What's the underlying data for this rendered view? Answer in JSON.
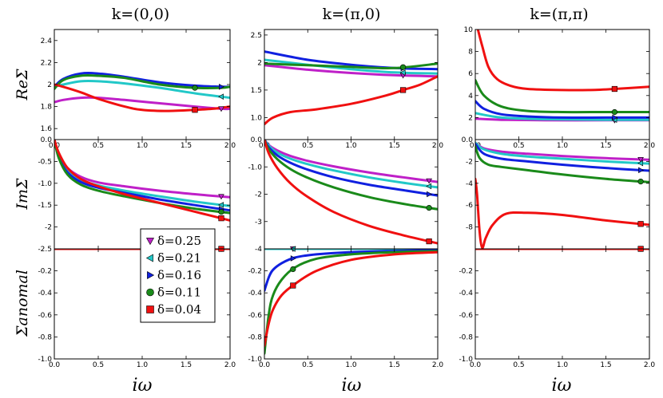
{
  "figure": {
    "col_titles": [
      "k=(0,0)",
      "k=(π,0)",
      "k=(π,π)"
    ],
    "row_labels": [
      "ReΣ",
      "ImΣ",
      "Σanomal"
    ],
    "xlabel": "iω",
    "colors": {
      "0.25": "#bf20c8",
      "0.21": "#22c8c8",
      "0.16": "#1020e0",
      "0.11": "#1a8a1a",
      "0.04": "#f01010"
    },
    "legend": [
      {
        "key": "0.25",
        "label": "δ=0.25",
        "marker": "triangle-down"
      },
      {
        "key": "0.21",
        "label": "δ=0.21",
        "marker": "triangle-left"
      },
      {
        "key": "0.16",
        "label": "δ=0.16",
        "marker": "triangle-right"
      },
      {
        "key": "0.11",
        "label": "δ=0.11",
        "marker": "circle"
      },
      {
        "key": "0.04",
        "label": "δ=0.04",
        "marker": "square"
      }
    ]
  },
  "chart_data": [
    {
      "type": "line",
      "title": "k=(0,0)",
      "ylabel": "ReΣ",
      "xlim": [
        0,
        2
      ],
      "ylim": [
        1.5,
        2.5
      ],
      "xticks": [
        0.0,
        0.5,
        1.0,
        1.5,
        2.0
      ],
      "yticks": [
        1.6,
        1.8,
        2.0,
        2.2,
        2.4
      ],
      "series": [
        {
          "key": "0.25",
          "x": [
            0,
            0.1,
            0.3,
            0.5,
            0.8,
            1.2,
            1.6,
            1.9,
            2.0
          ],
          "y": [
            1.84,
            1.86,
            1.88,
            1.88,
            1.86,
            1.83,
            1.8,
            1.78,
            1.78
          ],
          "marker_x": 1.9
        },
        {
          "key": "0.21",
          "x": [
            0,
            0.1,
            0.3,
            0.5,
            0.8,
            1.2,
            1.6,
            1.9,
            2.0
          ],
          "y": [
            1.98,
            2.0,
            2.03,
            2.03,
            2.01,
            1.97,
            1.92,
            1.89,
            1.88
          ],
          "marker_x": 1.9
        },
        {
          "key": "0.16",
          "x": [
            0,
            0.1,
            0.3,
            0.5,
            0.8,
            1.2,
            1.6,
            1.9,
            2.0
          ],
          "y": [
            1.98,
            2.05,
            2.1,
            2.1,
            2.07,
            2.02,
            1.99,
            1.98,
            1.98
          ],
          "marker_x": 1.9
        },
        {
          "key": "0.11",
          "x": [
            0,
            0.1,
            0.3,
            0.5,
            0.8,
            1.2,
            1.6,
            1.9,
            2.0
          ],
          "y": [
            1.96,
            2.04,
            2.08,
            2.08,
            2.06,
            2.0,
            1.97,
            1.97,
            1.98
          ],
          "marker_x": 1.6
        },
        {
          "key": "0.04",
          "x": [
            0,
            0.1,
            0.3,
            0.5,
            0.8,
            1.0,
            1.3,
            1.6,
            1.8,
            2.0
          ],
          "y": [
            2.0,
            1.98,
            1.93,
            1.87,
            1.8,
            1.77,
            1.76,
            1.77,
            1.78,
            1.8
          ],
          "marker_x": 1.6
        }
      ]
    },
    {
      "type": "line",
      "title": "k=(π,0)",
      "ylabel": "ReΣ",
      "xlim": [
        0,
        2
      ],
      "ylim": [
        0.6,
        2.6
      ],
      "xticks": [
        0.0,
        0.5,
        1.0,
        1.5,
        2.0
      ],
      "yticks": [
        1.0,
        1.5,
        2.0,
        2.5
      ],
      "series": [
        {
          "key": "0.25",
          "x": [
            0,
            0.5,
            1.0,
            1.5,
            2.0
          ],
          "y": [
            1.95,
            1.87,
            1.81,
            1.77,
            1.75
          ],
          "marker_x": 1.6
        },
        {
          "key": "0.21",
          "x": [
            0,
            0.5,
            1.0,
            1.5,
            2.0
          ],
          "y": [
            2.05,
            1.96,
            1.88,
            1.82,
            1.8
          ],
          "marker_x": 1.6
        },
        {
          "key": "0.16",
          "x": [
            0,
            0.5,
            1.0,
            1.5,
            2.0
          ],
          "y": [
            2.2,
            2.05,
            1.96,
            1.9,
            1.88
          ],
          "marker_x": 1.6
        },
        {
          "key": "0.11",
          "x": [
            0,
            0.5,
            1.0,
            1.5,
            2.0
          ],
          "y": [
            1.98,
            1.95,
            1.92,
            1.9,
            1.98
          ],
          "marker_x": 1.6
        },
        {
          "key": "0.04",
          "x": [
            0,
            0.1,
            0.3,
            0.6,
            1.0,
            1.4,
            1.6,
            1.8,
            2.0
          ],
          "y": [
            0.88,
            1.0,
            1.1,
            1.15,
            1.25,
            1.4,
            1.5,
            1.6,
            1.75
          ],
          "marker_x": 1.6
        }
      ]
    },
    {
      "type": "line",
      "title": "k=(π,π)",
      "ylabel": "ReΣ",
      "xlim": [
        0,
        2
      ],
      "ylim": [
        0,
        10
      ],
      "xticks": [
        0.0,
        0.5,
        1.0,
        1.5,
        2.0
      ],
      "yticks": [
        0,
        2,
        4,
        6,
        8,
        10
      ],
      "series": [
        {
          "key": "0.25",
          "x": [
            0,
            0.3,
            0.8,
            1.5,
            2.0
          ],
          "y": [
            1.9,
            1.8,
            1.75,
            1.75,
            1.75
          ],
          "marker_x": 1.6
        },
        {
          "key": "0.21",
          "x": [
            0,
            0.3,
            0.8,
            1.5,
            2.0
          ],
          "y": [
            2.4,
            2.0,
            1.85,
            1.8,
            1.8
          ],
          "marker_x": 1.6
        },
        {
          "key": "0.16",
          "x": [
            0,
            0.1,
            0.3,
            0.6,
            1.0,
            1.5,
            2.0
          ],
          "y": [
            3.5,
            2.8,
            2.3,
            2.1,
            2.0,
            2.0,
            2.0
          ],
          "marker_x": 1.6
        },
        {
          "key": "0.11",
          "x": [
            0,
            0.1,
            0.3,
            0.6,
            1.0,
            1.5,
            2.0
          ],
          "y": [
            5.4,
            4.0,
            3.0,
            2.6,
            2.5,
            2.5,
            2.5
          ],
          "marker_x": 1.6
        },
        {
          "key": "0.04",
          "x": [
            0.03,
            0.08,
            0.15,
            0.25,
            0.4,
            0.6,
            1.0,
            1.3,
            1.6,
            2.0
          ],
          "y": [
            10,
            8.5,
            6.6,
            5.5,
            4.9,
            4.6,
            4.5,
            4.5,
            4.6,
            4.8
          ],
          "marker_x": 1.6
        }
      ]
    },
    {
      "type": "line",
      "title": "",
      "ylabel": "ImΣ",
      "xlim": [
        0,
        2
      ],
      "ylim": [
        -2.5,
        0
      ],
      "xticks": [],
      "yticks": [
        0.0,
        -0.5,
        -1.0,
        -1.5,
        -2.0,
        -2.5
      ],
      "series": [
        {
          "key": "0.25",
          "x": [
            0,
            0.05,
            0.15,
            0.3,
            0.5,
            0.8,
            1.2,
            1.6,
            2.0
          ],
          "y": [
            0,
            -0.35,
            -0.65,
            -0.85,
            -0.98,
            -1.07,
            -1.17,
            -1.25,
            -1.32
          ],
          "marker_x": 1.9
        },
        {
          "key": "0.21",
          "x": [
            0,
            0.05,
            0.15,
            0.3,
            0.5,
            0.8,
            1.2,
            1.6,
            2.0
          ],
          "y": [
            0,
            -0.38,
            -0.7,
            -0.92,
            -1.05,
            -1.17,
            -1.3,
            -1.42,
            -1.52
          ],
          "marker_x": 1.9
        },
        {
          "key": "0.16",
          "x": [
            0,
            0.05,
            0.15,
            0.3,
            0.5,
            0.8,
            1.2,
            1.6,
            2.0
          ],
          "y": [
            0,
            -0.4,
            -0.75,
            -0.97,
            -1.1,
            -1.22,
            -1.37,
            -1.5,
            -1.62
          ],
          "marker_x": 1.9
        },
        {
          "key": "0.11",
          "x": [
            0,
            0.05,
            0.15,
            0.3,
            0.5,
            0.8,
            1.2,
            1.6,
            2.0
          ],
          "y": [
            0,
            -0.42,
            -0.8,
            -1.03,
            -1.17,
            -1.3,
            -1.45,
            -1.58,
            -1.68
          ],
          "marker_x": 1.9
        },
        {
          "key": "0.04",
          "x": [
            0,
            0.05,
            0.15,
            0.3,
            0.5,
            0.8,
            1.2,
            1.6,
            2.0
          ],
          "y": [
            0,
            -0.3,
            -0.65,
            -0.9,
            -1.07,
            -1.25,
            -1.45,
            -1.65,
            -1.85
          ],
          "marker_x": 1.9
        }
      ]
    },
    {
      "type": "line",
      "title": "",
      "ylabel": "ImΣ",
      "xlim": [
        0,
        2
      ],
      "ylim": [
        -4.0,
        0
      ],
      "xticks": [],
      "yticks": [
        0.0,
        -1.0,
        -2.0,
        -3.0,
        -4.0
      ],
      "series": [
        {
          "key": "0.25",
          "x": [
            0,
            0.05,
            0.15,
            0.3,
            0.5,
            0.8,
            1.2,
            1.6,
            2.0
          ],
          "y": [
            0,
            -0.2,
            -0.4,
            -0.6,
            -0.78,
            -0.98,
            -1.2,
            -1.38,
            -1.55
          ],
          "marker_x": 1.9
        },
        {
          "key": "0.21",
          "x": [
            0,
            0.05,
            0.15,
            0.3,
            0.5,
            0.8,
            1.2,
            1.6,
            2.0
          ],
          "y": [
            0,
            -0.22,
            -0.48,
            -0.7,
            -0.9,
            -1.13,
            -1.38,
            -1.58,
            -1.75
          ],
          "marker_x": 1.9
        },
        {
          "key": "0.16",
          "x": [
            0,
            0.05,
            0.15,
            0.3,
            0.5,
            0.8,
            1.2,
            1.6,
            2.0
          ],
          "y": [
            0,
            -0.28,
            -0.58,
            -0.85,
            -1.1,
            -1.38,
            -1.65,
            -1.85,
            -2.05
          ],
          "marker_x": 1.9
        },
        {
          "key": "0.11",
          "x": [
            0,
            0.05,
            0.15,
            0.3,
            0.5,
            0.8,
            1.2,
            1.6,
            2.0
          ],
          "y": [
            0,
            -0.35,
            -0.72,
            -1.08,
            -1.4,
            -1.75,
            -2.1,
            -2.35,
            -2.55
          ],
          "marker_x": 1.9
        },
        {
          "key": "0.04",
          "x": [
            0,
            0.05,
            0.15,
            0.3,
            0.5,
            0.8,
            1.2,
            1.6,
            2.0
          ],
          "y": [
            0,
            -0.5,
            -1.05,
            -1.6,
            -2.1,
            -2.65,
            -3.15,
            -3.5,
            -3.8
          ],
          "marker_x": 1.9
        }
      ]
    },
    {
      "type": "line",
      "title": "",
      "ylabel": "ImΣ",
      "xlim": [
        0,
        2
      ],
      "ylim": [
        -10,
        0
      ],
      "xticks": [],
      "yticks": [
        -2,
        -4,
        -6,
        -8
      ],
      "series": [
        {
          "key": "0.25",
          "x": [
            0,
            0.1,
            0.3,
            0.6,
            1.0,
            1.5,
            2.0
          ],
          "y": [
            -0.3,
            -0.8,
            -1.1,
            -1.3,
            -1.5,
            -1.7,
            -1.85
          ],
          "marker_x": 1.9
        },
        {
          "key": "0.21",
          "x": [
            0,
            0.1,
            0.3,
            0.6,
            1.0,
            1.5,
            2.0
          ],
          "y": [
            -0.3,
            -0.9,
            -1.3,
            -1.55,
            -1.75,
            -2.0,
            -2.2
          ],
          "marker_x": 1.9
        },
        {
          "key": "0.16",
          "x": [
            0,
            0.1,
            0.3,
            0.6,
            1.0,
            1.5,
            2.0
          ],
          "y": [
            -0.4,
            -1.3,
            -1.75,
            -2.0,
            -2.3,
            -2.6,
            -2.85
          ],
          "marker_x": 1.9
        },
        {
          "key": "0.11",
          "x": [
            0,
            0.05,
            0.15,
            0.3,
            0.6,
            1.0,
            1.5,
            2.0
          ],
          "y": [
            -0.6,
            -1.7,
            -2.3,
            -2.5,
            -2.8,
            -3.2,
            -3.6,
            -3.9
          ],
          "marker_x": 1.9
        },
        {
          "key": "0.04",
          "x": [
            0,
            0.02,
            0.05,
            0.08,
            0.12,
            0.2,
            0.35,
            0.6,
            1.0,
            1.5,
            2.0
          ],
          "y": [
            -3.6,
            -5.0,
            -8.5,
            -9.9,
            -9.0,
            -7.8,
            -6.8,
            -6.7,
            -6.9,
            -7.4,
            -7.8
          ],
          "marker_x": 1.9
        }
      ]
    },
    {
      "type": "line",
      "title": "",
      "ylabel": "Σanomal",
      "xlim": [
        0,
        2
      ],
      "ylim": [
        -1.0,
        0
      ],
      "xticks": [
        0.0,
        0.5,
        1.0,
        1.5,
        2.0
      ],
      "yticks": [
        -0.2,
        -0.4,
        -0.6,
        -0.8,
        -1.0
      ],
      "series": [
        {
          "key": "0.25",
          "x": [
            0,
            2.0
          ],
          "y": [
            0,
            0
          ],
          "marker_x": 1.9
        },
        {
          "key": "0.21",
          "x": [
            0,
            2.0
          ],
          "y": [
            0,
            0
          ],
          "marker_x": 1.9
        },
        {
          "key": "0.16",
          "x": [
            0,
            2.0
          ],
          "y": [
            0,
            0
          ],
          "marker_x": 1.9
        },
        {
          "key": "0.11",
          "x": [
            0,
            2.0
          ],
          "y": [
            0,
            0
          ],
          "marker_x": 1.9
        },
        {
          "key": "0.04",
          "x": [
            0,
            2.0
          ],
          "y": [
            0,
            0
          ],
          "marker_x": 1.9
        }
      ]
    },
    {
      "type": "line",
      "title": "",
      "ylabel": "Σanomal",
      "xlim": [
        0,
        2
      ],
      "ylim": [
        -1.0,
        0
      ],
      "xticks": [
        0.0,
        0.5,
        1.0,
        1.5,
        2.0
      ],
      "yticks": [
        -0.2,
        -0.4,
        -0.6,
        -0.8,
        -1.0
      ],
      "series": [
        {
          "key": "0.25",
          "x": [
            0,
            2.0
          ],
          "y": [
            0,
            0
          ],
          "marker_x": 0.33
        },
        {
          "key": "0.21",
          "x": [
            0,
            2.0
          ],
          "y": [
            0,
            0
          ],
          "marker_x": 0.33
        },
        {
          "key": "0.16",
          "x": [
            0,
            0.05,
            0.1,
            0.2,
            0.35,
            0.6,
            1.0,
            1.5,
            2.0
          ],
          "y": [
            -0.38,
            -0.26,
            -0.19,
            -0.13,
            -0.08,
            -0.05,
            -0.03,
            -0.02,
            -0.01
          ],
          "marker_x": 0.33
        },
        {
          "key": "0.11",
          "x": [
            0,
            0.05,
            0.1,
            0.2,
            0.35,
            0.6,
            1.0,
            1.5,
            2.0
          ],
          "y": [
            -0.95,
            -0.6,
            -0.42,
            -0.28,
            -0.17,
            -0.09,
            -0.05,
            -0.03,
            -0.02
          ],
          "marker_x": 0.33
        },
        {
          "key": "0.04",
          "x": [
            0,
            0.05,
            0.1,
            0.2,
            0.35,
            0.6,
            1.0,
            1.5,
            2.0
          ],
          "y": [
            -0.88,
            -0.68,
            -0.55,
            -0.42,
            -0.32,
            -0.2,
            -0.1,
            -0.05,
            -0.03
          ],
          "marker_x": 0.33
        }
      ]
    },
    {
      "type": "line",
      "title": "",
      "ylabel": "Σanomal",
      "xlim": [
        0,
        2
      ],
      "ylim": [
        -1.0,
        0
      ],
      "xticks": [
        0.0,
        0.5,
        1.0,
        1.5,
        2.0
      ],
      "yticks": [
        -0.2,
        -0.4,
        -0.6,
        -0.8,
        -1.0
      ],
      "series": [
        {
          "key": "0.25",
          "x": [
            0,
            2.0
          ],
          "y": [
            0,
            0
          ],
          "marker_x": 1.9
        },
        {
          "key": "0.21",
          "x": [
            0,
            2.0
          ],
          "y": [
            0,
            0
          ],
          "marker_x": 1.9
        },
        {
          "key": "0.16",
          "x": [
            0,
            2.0
          ],
          "y": [
            0,
            0
          ],
          "marker_x": 1.9
        },
        {
          "key": "0.11",
          "x": [
            0,
            2.0
          ],
          "y": [
            0,
            0
          ],
          "marker_x": 1.9
        },
        {
          "key": "0.04",
          "x": [
            0,
            2.0
          ],
          "y": [
            0,
            0
          ],
          "marker_x": 1.9
        }
      ]
    }
  ]
}
